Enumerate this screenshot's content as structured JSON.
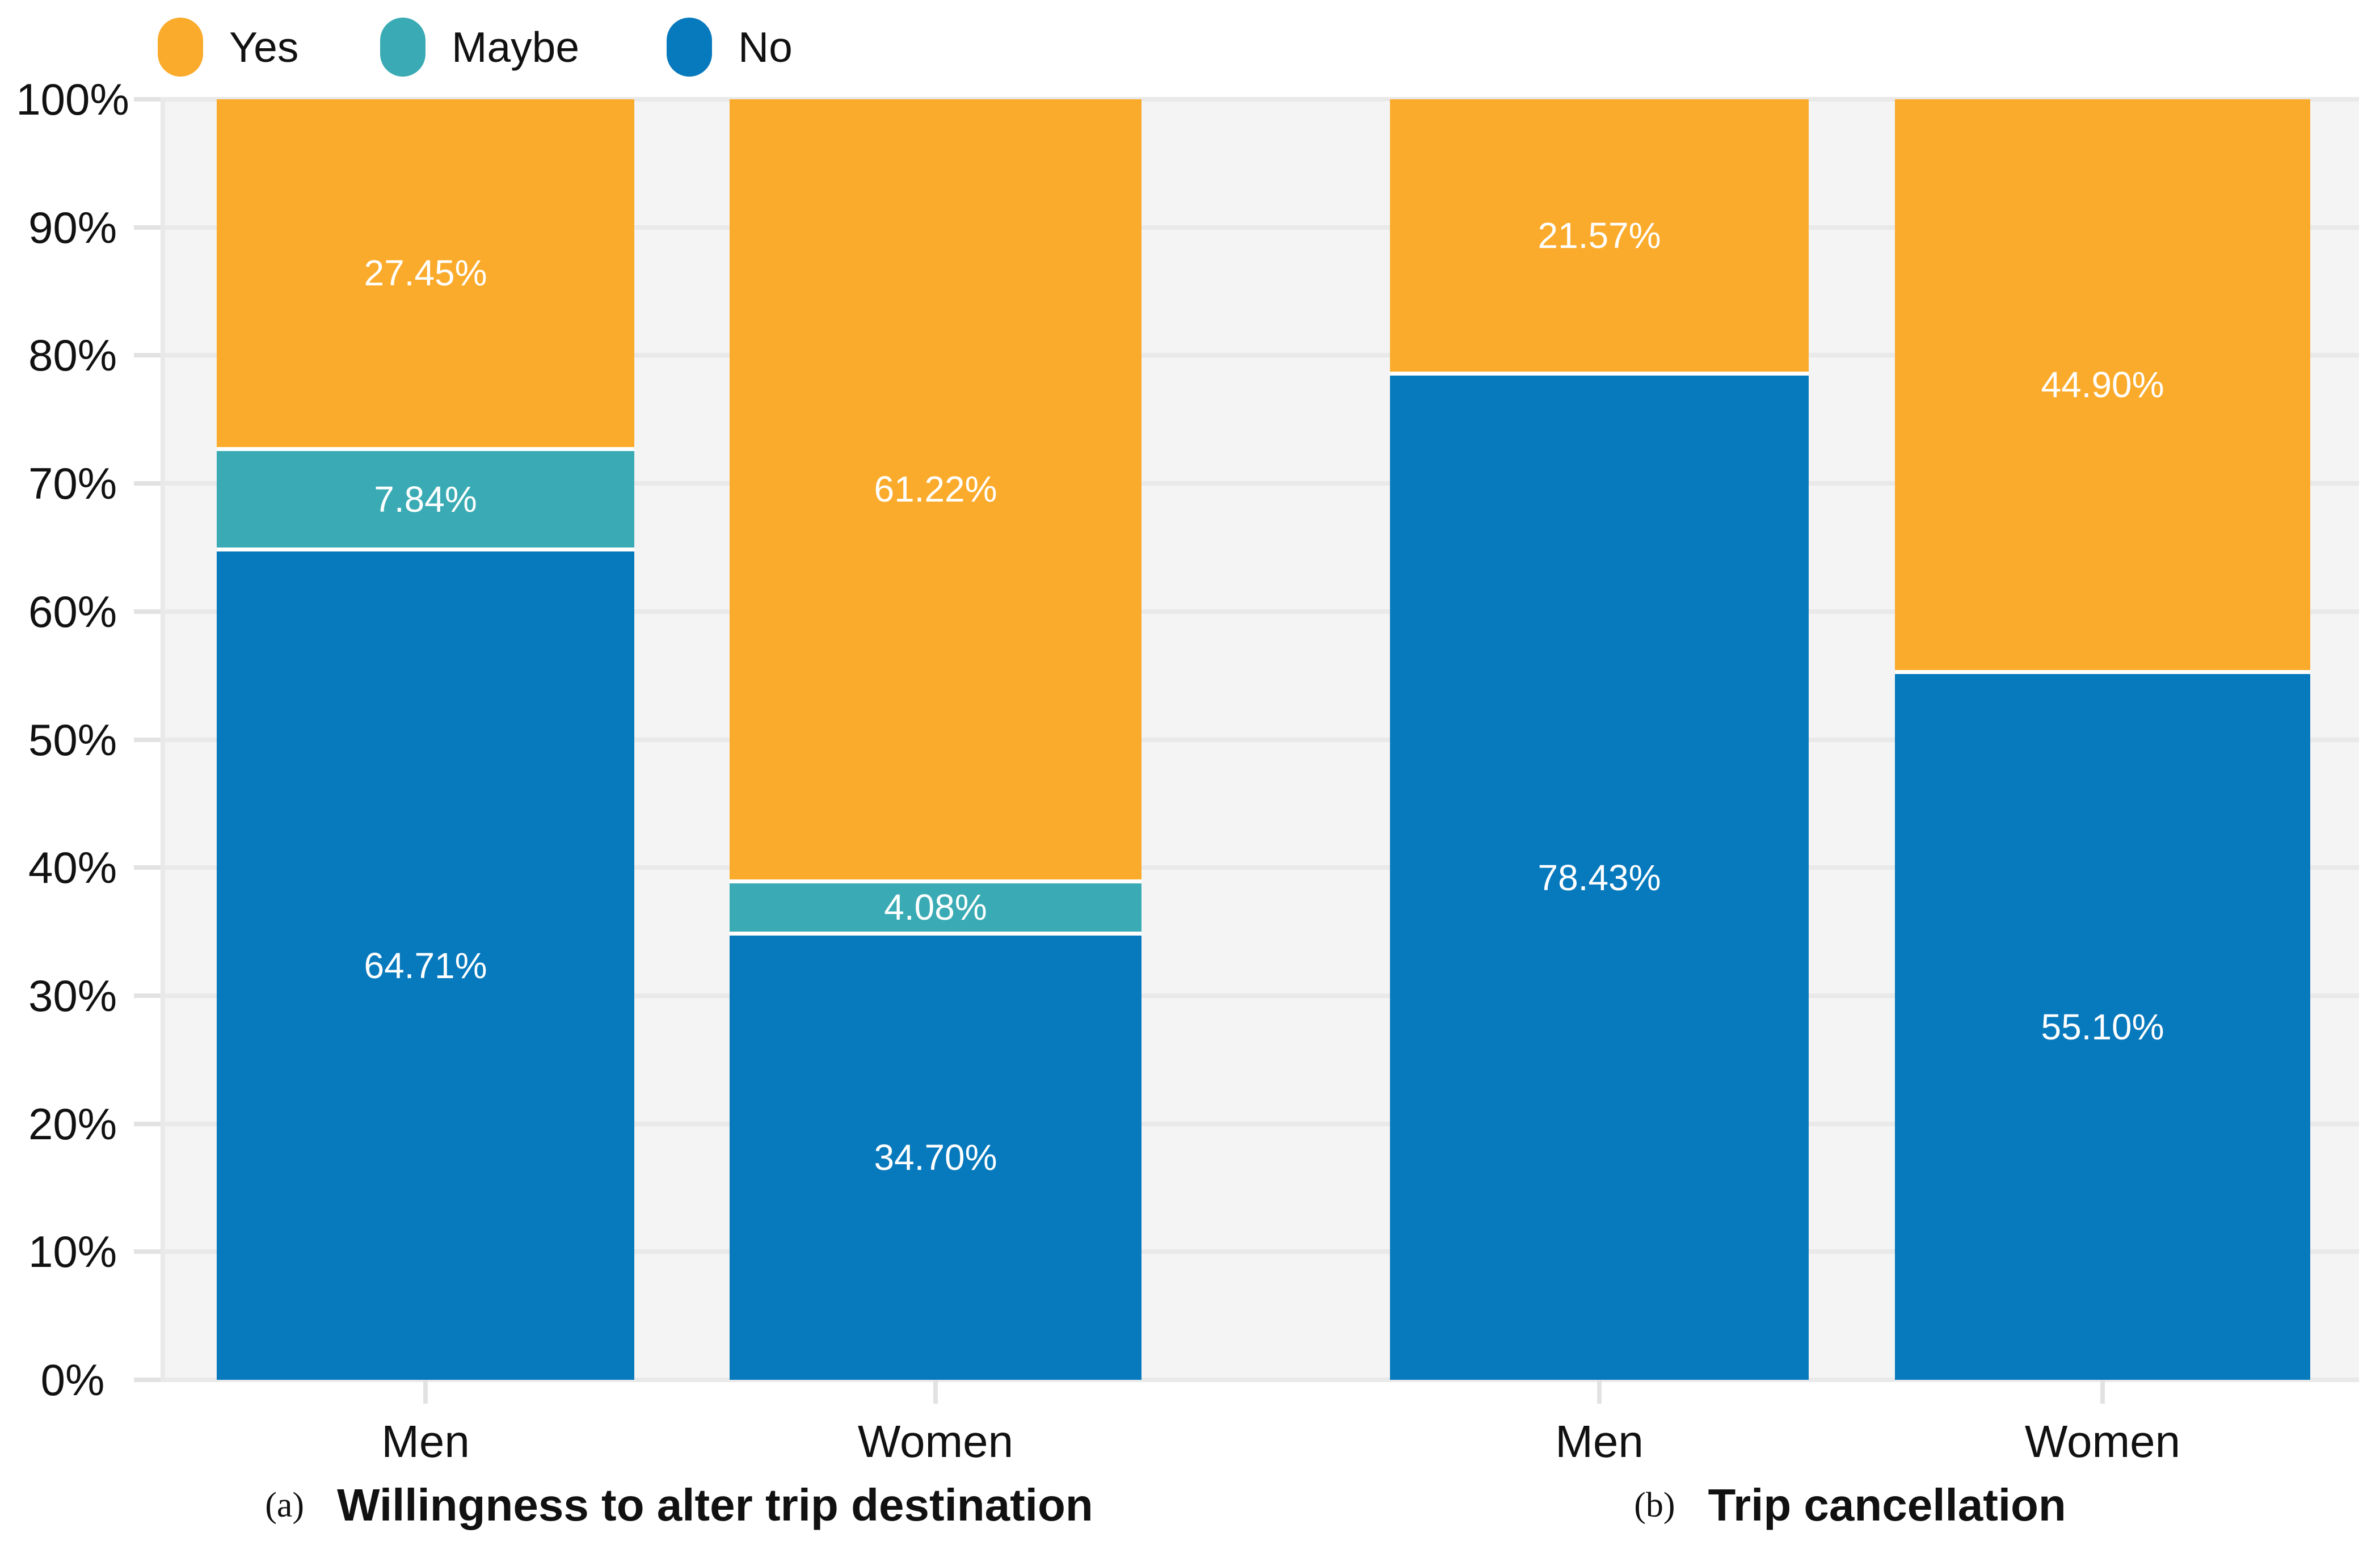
{
  "legend": {
    "items": [
      {
        "label": "Yes",
        "color": "#FBAB2B"
      },
      {
        "label": "Maybe",
        "color": "#3AABB4"
      },
      {
        "label": "No",
        "color": "#0779BD"
      }
    ]
  },
  "y_axis": {
    "tick_labels": [
      "100%",
      "90%",
      "80%",
      "70%",
      "60%",
      "50%",
      "40%",
      "30%",
      "20%",
      "10%",
      "0%"
    ]
  },
  "colors": {
    "plot_background": "#F4F4F4",
    "gridline": "#E9E9E9",
    "axis_tick": "#E2E2E2",
    "bar_label_text": "#FFFFFF",
    "text": "#111111",
    "yes": "#FBAB2B",
    "maybe": "#3AABB4",
    "no": "#0779BD"
  },
  "chart_data": {
    "type": "bar",
    "stacked": true,
    "unit": "percent",
    "ylim": [
      0,
      100
    ],
    "grid": true,
    "legend_position": "top-left",
    "panels": [
      {
        "caption_prefix": "(a)",
        "caption": "Willingness to alter trip destination",
        "categories": [
          "Men",
          "Women"
        ],
        "series": [
          {
            "name": "Yes",
            "color": "#FBAB2B",
            "values": [
              27.45,
              61.22
            ],
            "labels": [
              "27.45%",
              "61.22%"
            ]
          },
          {
            "name": "Maybe",
            "color": "#3AABB4",
            "values": [
              7.84,
              4.08
            ],
            "labels": [
              "7.84%",
              "4.08%"
            ]
          },
          {
            "name": "No",
            "color": "#0779BD",
            "values": [
              64.71,
              34.7
            ],
            "labels": [
              "64.71%",
              "34.70%"
            ]
          }
        ]
      },
      {
        "caption_prefix": "(b)",
        "caption": "Trip cancellation",
        "categories": [
          "Men",
          "Women"
        ],
        "series": [
          {
            "name": "Yes",
            "color": "#FBAB2B",
            "values": [
              21.57,
              44.9
            ],
            "labels": [
              "21.57%",
              "44.90%"
            ]
          },
          {
            "name": "Maybe",
            "color": "#3AABB4",
            "values": [
              0,
              0
            ],
            "labels": [
              "",
              ""
            ]
          },
          {
            "name": "No",
            "color": "#0779BD",
            "values": [
              78.43,
              55.1
            ],
            "labels": [
              "78.43%",
              "55.10%"
            ]
          }
        ]
      }
    ]
  }
}
